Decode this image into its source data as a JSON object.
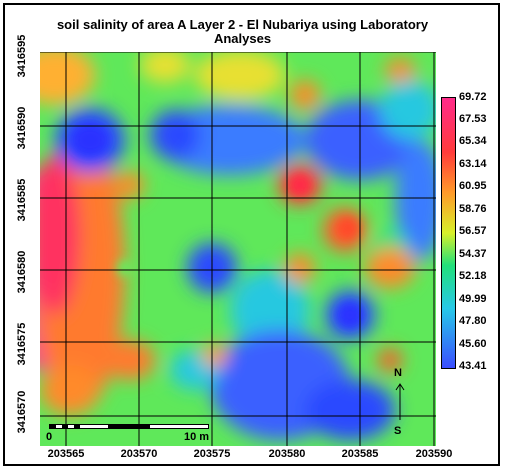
{
  "title": "soil salinity of area A Layer 2 - El Nubariya using Laboratory Analyses",
  "y_ticks": [
    "3416595",
    "3416590",
    "3416585",
    "3416580",
    "3416575",
    "3416570"
  ],
  "x_ticks": [
    "203565",
    "203570",
    "203575",
    "203580",
    "203585",
    "203590"
  ],
  "legend_values": [
    "69.72",
    "67.53",
    "65.34",
    "63.14",
    "60.95",
    "58.76",
    "56.57",
    "54.37",
    "52.18",
    "49.99",
    "47.80",
    "45.60",
    "43.41"
  ],
  "legend_colors": {
    "max": "#ff2b8a",
    "high": "#ff3b3b",
    "mid_high": "#ff9a2a",
    "mid": "#d8f02a",
    "mid_low": "#22e07a",
    "low": "#27c8e8",
    "min": "#3a4dff"
  },
  "scale_bar": {
    "start": "0",
    "end": "10 m"
  },
  "north_arrow": {
    "north": "N",
    "south": "S"
  },
  "map_colors": {
    "base": "#66ee44"
  }
}
